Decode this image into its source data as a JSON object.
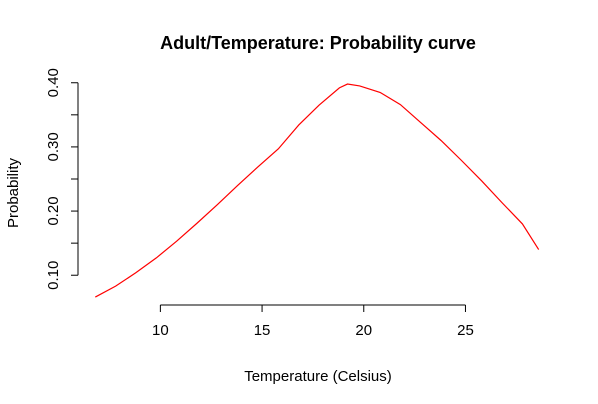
{
  "chart_data": {
    "type": "line",
    "title": "Adult/Temperature: Probability curve",
    "xlabel": "Temperature (Celsius)",
    "ylabel": "Probability",
    "xlim": [
      5.95,
      29.55
    ],
    "ylim": [
      0.0536,
      0.4074
    ],
    "x_ticks": [
      10,
      15,
      20,
      25
    ],
    "x_tick_labels": [
      "10",
      "15",
      "20",
      "25"
    ],
    "y_ticks": [
      0.1,
      0.15,
      0.2,
      0.25,
      0.3,
      0.35,
      0.4
    ],
    "y_tick_labels": [
      "0.10",
      "",
      "0.20",
      "",
      "0.30",
      "",
      "0.40"
    ],
    "grid": false,
    "line_color": "#ff0000",
    "series": [
      {
        "x": [
          6.8,
          7.8,
          8.8,
          9.8,
          10.8,
          11.8,
          12.8,
          13.8,
          14.8,
          15.8,
          16.8,
          17.8,
          18.8,
          19.2,
          19.8,
          20.8,
          21.8,
          22.8,
          23.8,
          24.8,
          25.8,
          26.8,
          27.8,
          28.6
        ],
        "y": [
          0.066,
          0.083,
          0.104,
          0.127,
          0.153,
          0.181,
          0.21,
          0.24,
          0.269,
          0.297,
          0.334,
          0.365,
          0.392,
          0.398,
          0.395,
          0.385,
          0.366,
          0.338,
          0.31,
          0.279,
          0.247,
          0.213,
          0.18,
          0.14
        ]
      }
    ]
  }
}
